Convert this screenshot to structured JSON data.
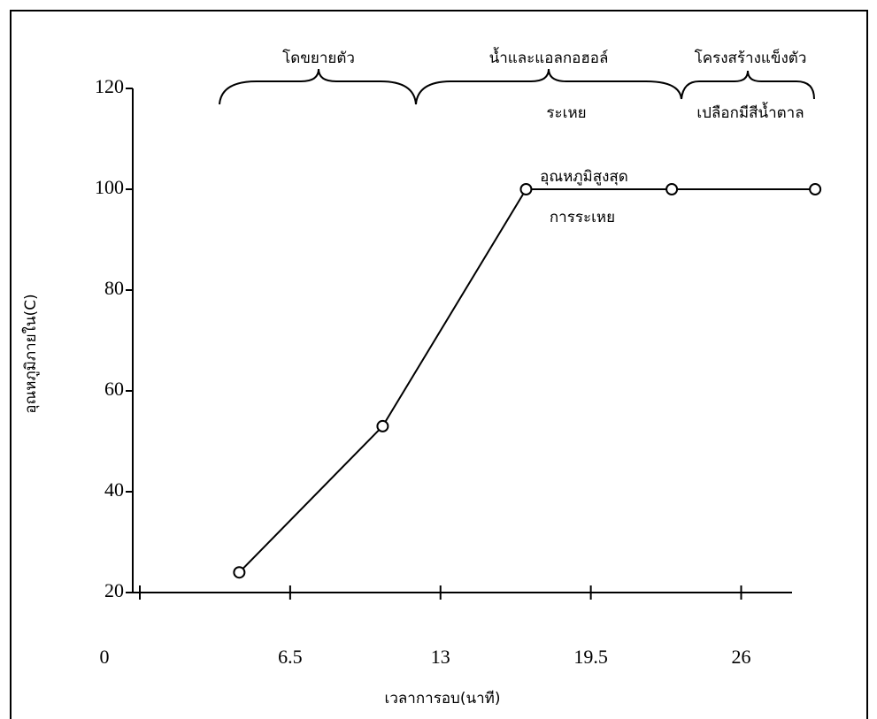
{
  "chart_data": {
    "type": "line",
    "x_label": "เวลาการอบ(นาที)",
    "y_label": "อุณหภูมิภายใน(C)",
    "annotations": [
      "โดขยายตัว",
      "น้ำและแอลกอฮอล์",
      "ระเหย",
      "โครงสร้างแข็งตัว",
      "เปลือกมีสีน้ำตาล",
      "อุณหภูมิสูงสุด",
      "การระเหย"
    ],
    "x": [
      4.3,
      10.5,
      16.7,
      23.0,
      29.2
    ],
    "series": [
      {
        "name": "อุณหภูมิ",
        "color": "#000000",
        "values": [
          24,
          53,
          100,
          100,
          100
        ]
      }
    ],
    "xlim": [
      0,
      28.2
    ],
    "xticks": [
      0,
      6.5,
      13,
      19.5,
      26
    ],
    "ylim": [
      20,
      120
    ],
    "yticks": [
      20,
      40,
      60,
      80,
      100,
      120
    ]
  }
}
